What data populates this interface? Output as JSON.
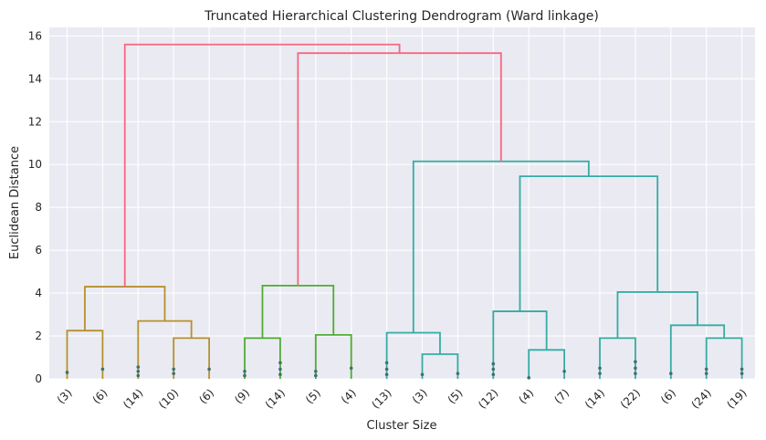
{
  "chart_data": {
    "type": "dendrogram",
    "title": "Truncated Hierarchical Clustering Dendrogram (Ward linkage)",
    "xlabel": "Cluster Size",
    "ylabel": "Euclidean Distance",
    "ylim": [
      0,
      16.4
    ],
    "yticks": [
      0,
      2,
      4,
      6,
      8,
      10,
      12,
      14,
      16
    ],
    "grid": true,
    "leaf_labels": [
      "(3)",
      "(6)",
      "(14)",
      "(10)",
      "(6)",
      "(9)",
      "(14)",
      "(5)",
      "(4)",
      "(13)",
      "(3)",
      "(5)",
      "(12)",
      "(4)",
      "(7)",
      "(14)",
      "(22)",
      "(6)",
      "(24)",
      "(19)"
    ],
    "colors": {
      "root": "#f7677f",
      "c1": "#b5912f",
      "c2": "#4eac33",
      "c3": "#35aca4",
      "background": "#eaeaf2",
      "grid": "#ffffff"
    },
    "merges": [
      {
        "left": 0,
        "right": 1,
        "height": 2.25,
        "color": "c1"
      },
      {
        "left": 3,
        "right": 4,
        "height": 1.9,
        "color": "c1"
      },
      {
        "left": 2,
        "right": 21,
        "height": 2.7,
        "color": "c1"
      },
      {
        "left": 20,
        "right": 22,
        "height": 4.3,
        "color": "c1"
      },
      {
        "left": 5,
        "right": 6,
        "height": 1.9,
        "color": "c2"
      },
      {
        "left": 7,
        "right": 8,
        "height": 2.05,
        "color": "c2"
      },
      {
        "left": 24,
        "right": 25,
        "height": 4.35,
        "color": "c2"
      },
      {
        "left": 10,
        "right": 11,
        "height": 1.15,
        "color": "c3"
      },
      {
        "left": 9,
        "right": 27,
        "height": 2.15,
        "color": "c3"
      },
      {
        "left": 13,
        "right": 14,
        "height": 1.35,
        "color": "c3"
      },
      {
        "left": 12,
        "right": 29,
        "height": 3.15,
        "color": "c3"
      },
      {
        "left": 15,
        "right": 16,
        "height": 1.9,
        "color": "c3"
      },
      {
        "left": 18,
        "right": 19,
        "height": 1.9,
        "color": "c3"
      },
      {
        "left": 17,
        "right": 32,
        "height": 2.5,
        "color": "c3"
      },
      {
        "left": 31,
        "right": 33,
        "height": 4.05,
        "color": "c3"
      },
      {
        "left": 30,
        "right": 34,
        "height": 9.45,
        "color": "c3"
      },
      {
        "left": 28,
        "right": 35,
        "height": 10.15,
        "color": "c3"
      },
      {
        "left": 26,
        "right": 36,
        "height": 15.2,
        "color": "root"
      },
      {
        "left": 23,
        "right": 37,
        "height": 15.6,
        "color": "root"
      }
    ],
    "leaf_dots": [
      [
        0.3
      ],
      [
        0.45
      ],
      [
        0.55,
        0.35,
        0.15
      ],
      [
        0.45,
        0.25
      ],
      [
        0.45
      ],
      [
        0.35,
        0.15
      ],
      [
        0.75,
        0.45,
        0.2
      ],
      [
        0.35,
        0.15
      ],
      [
        0.5
      ],
      [
        0.75,
        0.45,
        0.2
      ],
      [
        0.2
      ],
      [
        0.25
      ],
      [
        0.7,
        0.45,
        0.2
      ],
      [
        0.05
      ],
      [
        0.35
      ],
      [
        0.5,
        0.25
      ],
      [
        0.8,
        0.5,
        0.25
      ],
      [
        0.25
      ],
      [
        0.45,
        0.25
      ],
      [
        0.45,
        0.25
      ]
    ]
  }
}
